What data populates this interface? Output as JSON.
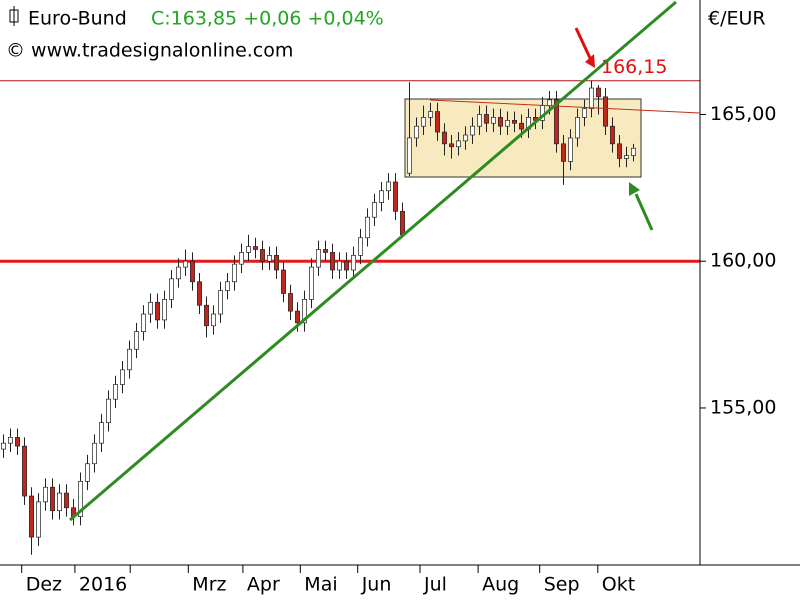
{
  "chart_data": {
    "type": "candlestick",
    "title": "Euro-Bund",
    "subtitle": "C:163,85 +0,06 +0,04%",
    "source": "© www.tradesignalonline.com",
    "y_axis_label": "€/EUR",
    "xlim": [
      0,
      100
    ],
    "xticks": [
      {
        "value": 3.1,
        "label": "Dez"
      },
      {
        "value": 10.7,
        "label": "2016"
      },
      {
        "value": 18.6,
        "label": null
      },
      {
        "value": 26.9,
        "label": "Mrz"
      },
      {
        "value": 34.7,
        "label": "Apr"
      },
      {
        "value": 42.9,
        "label": "Mai"
      },
      {
        "value": 51.1,
        "label": "Jun"
      },
      {
        "value": 60,
        "label": "Jul"
      },
      {
        "value": 68.3,
        "label": "Aug"
      },
      {
        "value": 77.1,
        "label": "Sep"
      },
      {
        "value": 85.4,
        "label": "Okt"
      }
    ],
    "ylim": [
      149.65,
      168.9
    ],
    "yticks": [
      {
        "value": 155,
        "label": "155,00"
      },
      {
        "value": 160,
        "label": "160,00"
      },
      {
        "value": 165,
        "label": "165,00"
      }
    ],
    "up_color": "#ffffff",
    "down_color": "#c0281e",
    "hlines": [
      {
        "value": 160,
        "color": "#e31b1b"
      },
      {
        "value": 166.15,
        "label": "166,15",
        "color": "#b41414"
      }
    ],
    "open": [
      153.6,
      153.8,
      154.0,
      153.7,
      152.0,
      150.6,
      151.8,
      152.3,
      151.5,
      152.1,
      151.6,
      151.3,
      152.5,
      153.1,
      153.8,
      154.5,
      155.3,
      155.8,
      156.3,
      157.0,
      157.6,
      158.2,
      158.6,
      158.0,
      158.7,
      159.4,
      159.8,
      160.0,
      159.3,
      158.5,
      157.8,
      158.2,
      159.0,
      159.3,
      159.9,
      160.3,
      160.5,
      160.4,
      160.0,
      160.2,
      159.7,
      158.9,
      158.3,
      157.9,
      158.7,
      159.8,
      160.4,
      160.3,
      159.7,
      160.0,
      159.7,
      160.2,
      160.8,
      161.5,
      162.0,
      162.4,
      162.7,
      161.7,
      163.0,
      164.2,
      164.6,
      164.9,
      165.1,
      164.4,
      164.0,
      163.9,
      164.1,
      164.3,
      164.6,
      165.0,
      164.7,
      164.9,
      164.6,
      164.8,
      164.7,
      164.5,
      164.9,
      164.8,
      165.3,
      165.5,
      164.0,
      163.4,
      164.2,
      164.9,
      165.2,
      165.9,
      165.6,
      164.6,
      164.0,
      163.5,
      163.6
    ],
    "high": [
      154.1,
      154.3,
      154.3,
      154.0,
      152.3,
      152.1,
      152.6,
      152.6,
      152.4,
      152.4,
      151.9,
      152.8,
      153.4,
      154.1,
      154.8,
      155.6,
      156.1,
      156.6,
      157.3,
      157.9,
      158.5,
      158.9,
      158.9,
      159.0,
      159.7,
      160.1,
      160.4,
      160.3,
      159.6,
      158.8,
      158.5,
      159.3,
      159.6,
      160.2,
      160.6,
      160.9,
      160.8,
      160.7,
      160.5,
      160.5,
      160.0,
      159.2,
      158.6,
      159.0,
      160.1,
      160.7,
      160.7,
      160.6,
      160.3,
      160.3,
      160.5,
      161.1,
      161.8,
      162.3,
      162.7,
      163.0,
      163.0,
      162.0,
      166.1,
      164.9,
      165.3,
      165.4,
      165.4,
      164.7,
      164.3,
      164.4,
      164.6,
      164.9,
      165.3,
      165.3,
      165.2,
      165.2,
      165.1,
      165.1,
      165.0,
      165.2,
      165.2,
      165.6,
      165.8,
      165.8,
      164.3,
      164.5,
      165.2,
      165.5,
      166.15,
      166.0,
      165.9,
      164.9,
      164.3,
      163.9,
      164.0
    ],
    "low": [
      153.3,
      153.5,
      153.4,
      151.7,
      150.0,
      150.3,
      151.5,
      151.2,
      151.2,
      151.3,
      151.0,
      151.0,
      152.2,
      152.8,
      153.5,
      154.2,
      155.0,
      155.5,
      156.0,
      156.7,
      157.3,
      157.9,
      157.7,
      157.7,
      158.4,
      159.1,
      159.5,
      159.0,
      158.2,
      157.4,
      157.5,
      157.9,
      158.7,
      159.0,
      159.6,
      160.0,
      160.1,
      159.7,
      159.7,
      159.4,
      158.6,
      158.0,
      157.6,
      157.6,
      158.4,
      159.5,
      160.0,
      159.4,
      159.4,
      159.4,
      159.4,
      159.9,
      160.5,
      161.2,
      161.7,
      162.1,
      161.4,
      160.8,
      162.9,
      163.9,
      164.3,
      164.6,
      164.1,
      163.6,
      163.5,
      163.6,
      163.8,
      164.0,
      164.3,
      164.4,
      164.4,
      164.3,
      164.3,
      164.4,
      164.2,
      164.2,
      164.5,
      164.5,
      165.0,
      163.7,
      162.6,
      163.1,
      163.9,
      164.6,
      164.9,
      165.0,
      164.3,
      163.7,
      163.2,
      163.2,
      163.4
    ],
    "close": [
      153.8,
      154.0,
      153.7,
      152.0,
      150.6,
      151.8,
      152.3,
      151.5,
      152.1,
      151.6,
      151.3,
      152.5,
      153.1,
      153.8,
      154.5,
      155.3,
      155.8,
      156.3,
      157.0,
      157.6,
      158.2,
      158.6,
      158.0,
      158.7,
      159.4,
      159.8,
      160.0,
      159.3,
      158.5,
      157.8,
      158.2,
      159.0,
      159.3,
      159.9,
      160.3,
      160.5,
      160.4,
      160.0,
      160.2,
      159.7,
      158.9,
      158.3,
      157.9,
      158.7,
      159.8,
      160.4,
      160.3,
      159.7,
      160.0,
      159.7,
      160.2,
      160.8,
      161.5,
      162.0,
      162.4,
      162.7,
      161.7,
      160.9,
      164.2,
      164.6,
      164.9,
      165.1,
      164.4,
      164.0,
      163.9,
      164.1,
      164.3,
      164.6,
      165.0,
      164.7,
      164.9,
      164.6,
      164.8,
      164.7,
      164.5,
      164.9,
      164.8,
      165.3,
      165.5,
      164.0,
      163.4,
      164.2,
      164.9,
      165.2,
      165.9,
      165.6,
      164.6,
      164.0,
      163.5,
      163.6,
      163.85
    ]
  }
}
